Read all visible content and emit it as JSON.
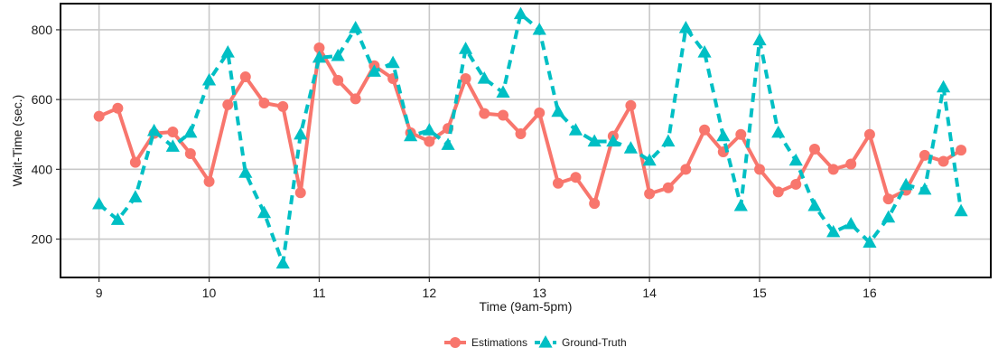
{
  "chart_data": {
    "type": "line",
    "title": "",
    "xlabel": "Time (9am-5pm)",
    "ylabel": "Wait-Time (sec.)",
    "xlim": [
      8.65,
      17.1
    ],
    "ylim": [
      90,
      875
    ],
    "x_ticks": [
      9,
      10,
      11,
      12,
      13,
      14,
      15,
      16
    ],
    "y_ticks": [
      200,
      400,
      600,
      800
    ],
    "grid": true,
    "legend_position": "bottom",
    "x": [
      9.0,
      9.17,
      9.33,
      9.5,
      9.67,
      9.83,
      10.0,
      10.17,
      10.33,
      10.5,
      10.67,
      10.83,
      11.0,
      11.17,
      11.33,
      11.5,
      11.67,
      11.83,
      12.0,
      12.17,
      12.33,
      12.5,
      12.67,
      12.83,
      13.0,
      13.17,
      13.33,
      13.5,
      13.67,
      13.83,
      14.0,
      14.17,
      14.33,
      14.5,
      14.67,
      14.83,
      15.0,
      15.17,
      15.33,
      15.5,
      15.67,
      15.83,
      16.0,
      16.17,
      16.33,
      16.5,
      16.67,
      16.83
    ],
    "series": [
      {
        "name": "Estimations",
        "color": "#F8766D",
        "marker": "circle",
        "dash": "solid",
        "values": [
          552,
          575,
          420,
          503,
          507,
          445,
          365,
          585,
          665,
          590,
          580,
          333,
          748,
          655,
          602,
          697,
          660,
          505,
          480,
          517,
          660,
          560,
          555,
          502,
          562,
          360,
          377,
          302,
          495,
          583,
          330,
          347,
          400,
          513,
          450,
          500,
          400,
          335,
          357,
          458,
          400,
          415,
          500,
          315,
          340,
          440,
          423,
          455
        ]
      },
      {
        "name": "Ground-Truth",
        "color": "#00BFC4",
        "marker": "triangle",
        "dash": "dashed",
        "values": [
          300,
          255,
          320,
          510,
          465,
          505,
          655,
          735,
          390,
          275,
          130,
          500,
          720,
          725,
          805,
          680,
          705,
          495,
          512,
          470,
          745,
          660,
          620,
          845,
          800,
          565,
          512,
          480,
          480,
          460,
          425,
          480,
          805,
          735,
          495,
          295,
          770,
          505,
          425,
          295,
          220,
          243,
          190,
          262,
          355,
          342,
          635,
          280
        ]
      }
    ]
  }
}
